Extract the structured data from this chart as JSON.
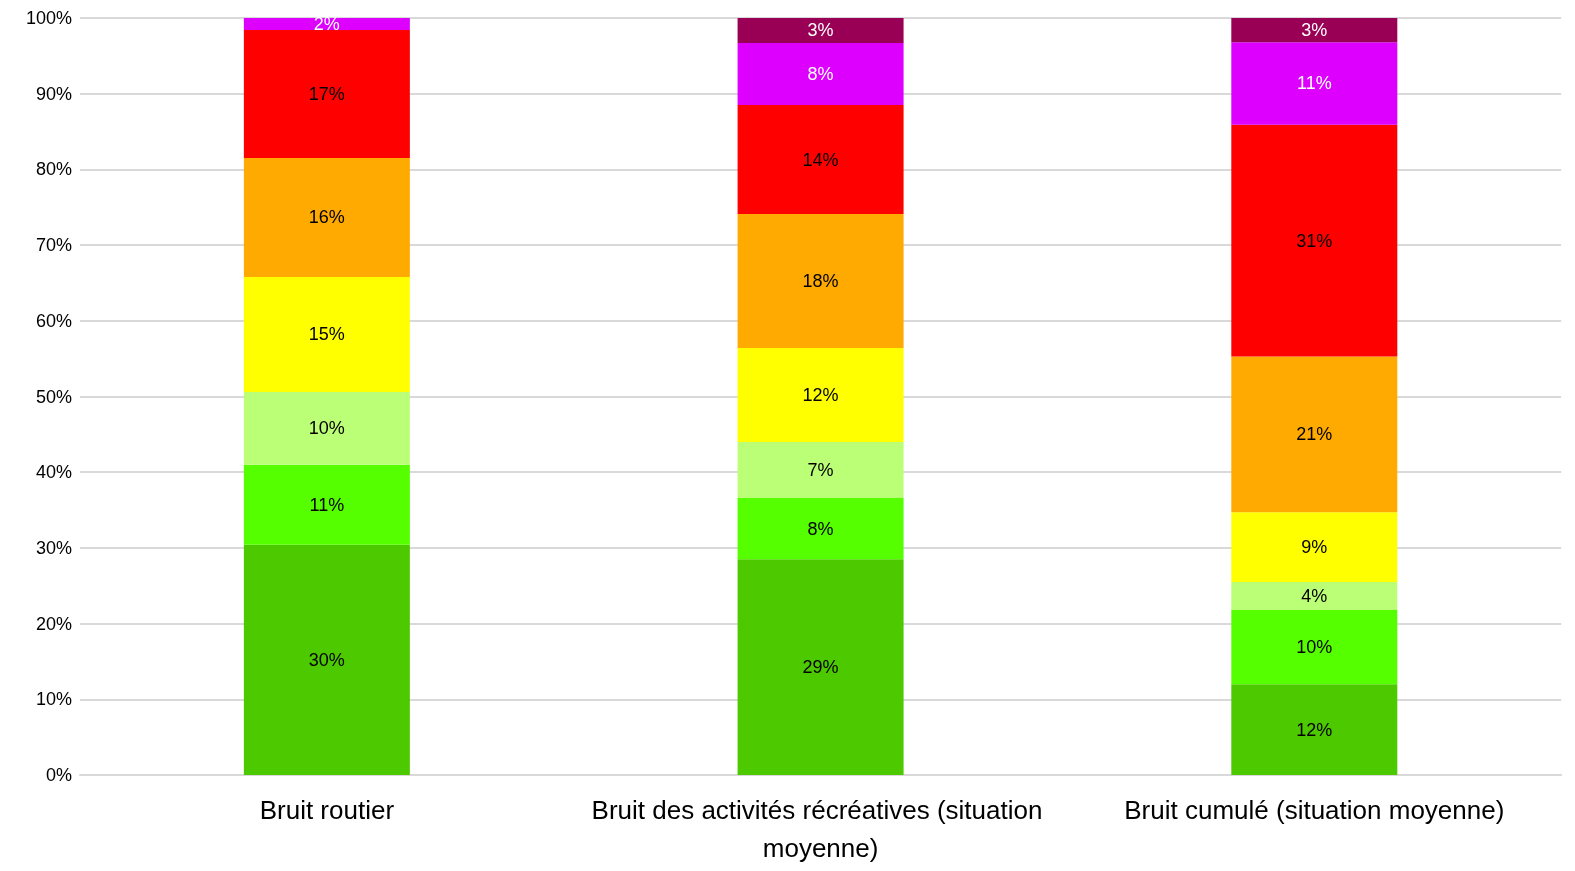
{
  "chart_data": {
    "type": "bar",
    "stacked": true,
    "categories": [
      "Bruit routier",
      "Bruit des activités récréatives (situation moyenne)",
      "Bruit cumulé (situation moyenne)"
    ],
    "series": [
      {
        "color": "#4dc900",
        "values": [
          30.4,
          28.5,
          12.0
        ],
        "value_labels": [
          "30%",
          "29%",
          "12%"
        ]
      },
      {
        "color": "#55ff00",
        "values": [
          10.6,
          8.1,
          9.8
        ],
        "value_labels": [
          "11%",
          "8%",
          "10%"
        ]
      },
      {
        "color": "#bbff77",
        "values": [
          9.6,
          7.4,
          3.7
        ],
        "value_labels": [
          "10%",
          "7%",
          "4%"
        ]
      },
      {
        "color": "#ffff00",
        "values": [
          15.2,
          12.4,
          9.2
        ],
        "value_labels": [
          "15%",
          "12%",
          "9%"
        ]
      },
      {
        "color": "#ffaa00",
        "values": [
          15.7,
          17.7,
          20.6
        ],
        "value_labels": [
          "16%",
          "18%",
          "21%"
        ]
      },
      {
        "color": "#ff0000",
        "values": [
          16.9,
          14.4,
          30.6
        ],
        "value_labels": [
          "17%",
          "14%",
          "31%"
        ]
      },
      {
        "color": "#dd00ff",
        "values": [
          1.6,
          8.2,
          10.9
        ],
        "value_labels": [
          "2%",
          "8%",
          "11%"
        ]
      },
      {
        "color": "#990055",
        "values": [
          null,
          3.3,
          3.2
        ],
        "value_labels": [
          null,
          "3%",
          "3%"
        ]
      }
    ],
    "ylim": [
      0,
      100
    ],
    "yticks": [
      {
        "value": 0,
        "label": "0%"
      },
      {
        "value": 10,
        "label": "10%"
      },
      {
        "value": 20,
        "label": "20%"
      },
      {
        "value": 30,
        "label": "30%"
      },
      {
        "value": 40,
        "label": "40%"
      },
      {
        "value": 50,
        "label": "50%"
      },
      {
        "value": 60,
        "label": "60%"
      },
      {
        "value": 70,
        "label": "70%"
      },
      {
        "value": 80,
        "label": "80%"
      },
      {
        "value": 90,
        "label": "90%"
      },
      {
        "value": 100,
        "label": "100%"
      }
    ],
    "grid": "y"
  }
}
